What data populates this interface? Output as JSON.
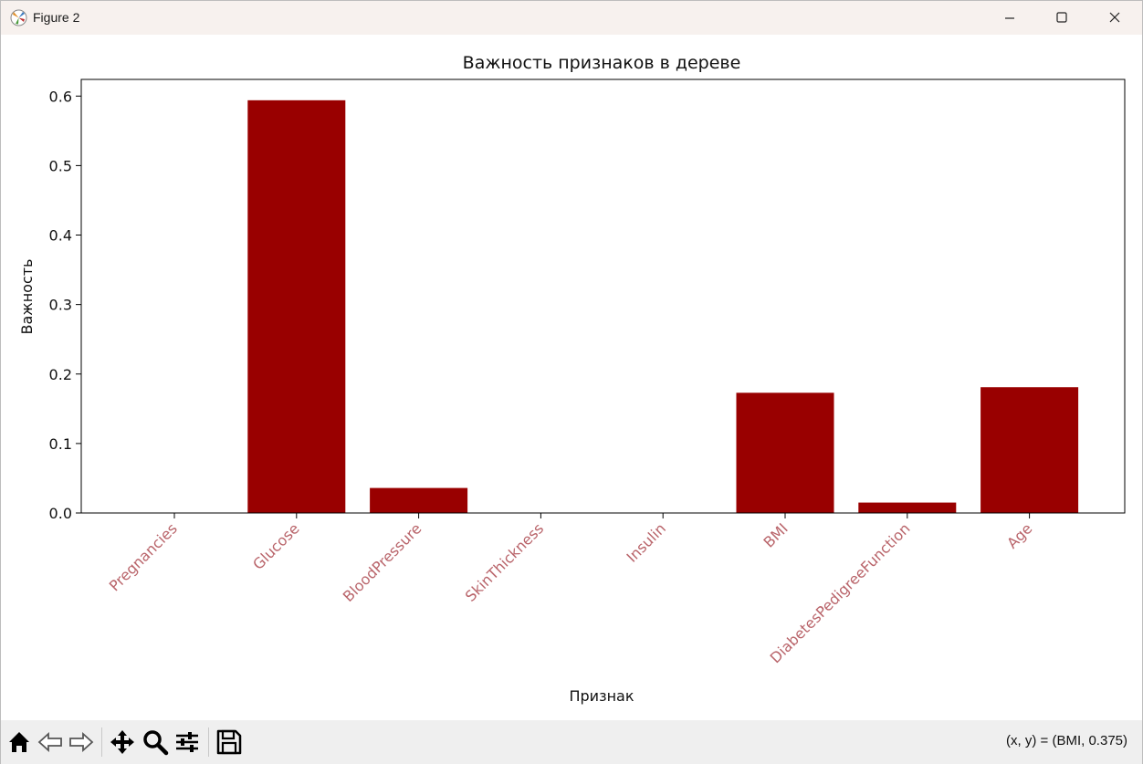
{
  "window": {
    "title": "Figure 2",
    "buttons": [
      "minimize",
      "maximize",
      "close"
    ]
  },
  "toolbar": {
    "icons": [
      "home-icon",
      "back-icon",
      "forward-icon",
      "pan-icon",
      "zoom-icon",
      "configure-subplots-icon",
      "save-icon"
    ],
    "coords_text": "(x, y) = (BMI, 0.375)"
  },
  "colors": {
    "bar": "#990000",
    "tick_label": "#b9646a",
    "titlebar": "#f7f1ee",
    "toolbar": "#efefef"
  },
  "chart_data": {
    "type": "bar",
    "title": "Важность признаков в дереве",
    "xlabel": "Признак",
    "ylabel": "Важность",
    "categories": [
      "Pregnancies",
      "Glucose",
      "BloodPressure",
      "SkinThickness",
      "Insulin",
      "BMI",
      "DiabetesPedigreeFunction",
      "Age"
    ],
    "values": [
      0.0,
      0.594,
      0.036,
      0.0,
      0.0,
      0.173,
      0.015,
      0.181
    ],
    "yticks": [
      "0.0",
      "0.1",
      "0.2",
      "0.3",
      "0.4",
      "0.5",
      "0.6"
    ],
    "ylim": [
      0,
      0.624
    ],
    "grid": false,
    "legend": "none"
  }
}
